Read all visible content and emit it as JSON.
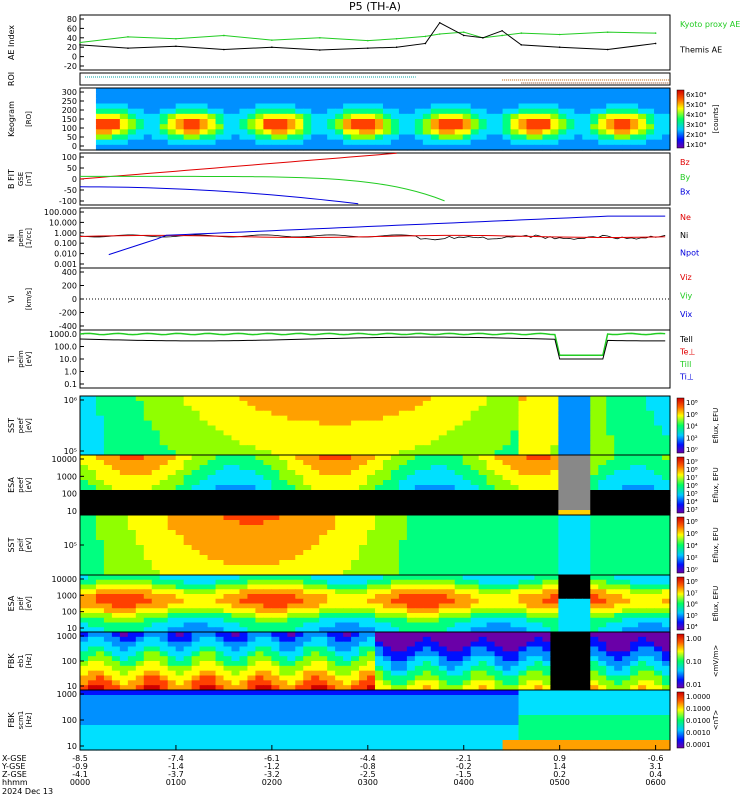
{
  "title": "P5 (TH-A)",
  "date_label": "2024 Dec 13",
  "footer": {
    "row_labels": [
      "X-GSE",
      "Y-GSE",
      "Z-GSE",
      "hhmm"
    ],
    "ticks": [
      {
        "x": "-8.5",
        "y": "-0.9",
        "z": "-4.1",
        "t": "0000"
      },
      {
        "x": "-7.4",
        "y": "-1.4",
        "z": "-3.7",
        "t": "0100"
      },
      {
        "x": "-6.1",
        "y": "-1.2",
        "z": "-3.2",
        "t": "0200"
      },
      {
        "x": "-4.4",
        "y": "-0.8",
        "z": "-2.5",
        "t": "0300"
      },
      {
        "x": "-2.1",
        "y": "-0.2",
        "z": "-1.5",
        "t": "0400"
      },
      {
        "x": "0.9",
        "y": "1.4",
        "z": "0.2",
        "t": "0500"
      },
      {
        "x": "-0.6",
        "y": "3.1",
        "z": "0.4",
        "t": "0600"
      }
    ]
  },
  "colors": {
    "red": "#e00000",
    "green": "#22cc22",
    "blue": "#0000dd",
    "black": "#000000"
  },
  "chart_data": [
    {
      "id": "ae",
      "type": "line",
      "ylabel": "AE Index",
      "yticks": [
        "80",
        "60",
        "40",
        "20",
        "0",
        "-20"
      ],
      "ylim": [
        -20,
        80
      ],
      "legend": [
        {
          "name": "Kyoto proxy AE",
          "color": "green"
        },
        {
          "name": "Themis AE",
          "color": "black"
        }
      ],
      "x_hours": [
        0,
        0.5,
        1,
        1.5,
        2,
        2.5,
        3,
        3.3,
        3.6,
        3.75,
        4,
        4.2,
        4.4,
        4.6,
        5,
        5.5,
        6
      ],
      "series": [
        {
          "name": "Kyoto proxy AE",
          "values": [
            30,
            42,
            38,
            45,
            35,
            40,
            34,
            38,
            43,
            48,
            52,
            40,
            45,
            50,
            47,
            52,
            50
          ]
        },
        {
          "name": "Themis AE",
          "values": [
            25,
            18,
            22,
            15,
            20,
            14,
            18,
            20,
            28,
            72,
            45,
            40,
            55,
            25,
            20,
            15,
            28
          ]
        }
      ]
    },
    {
      "id": "roi",
      "type": "other",
      "ylabel": "ROI"
    },
    {
      "id": "keogram",
      "type": "heatmap",
      "ylabel": "Keogram",
      "yunit": "[RO]",
      "yticks": [
        "300",
        "250",
        "200",
        "150",
        "100",
        "50",
        "0"
      ],
      "colorbar": {
        "ticks": [
          "6x10⁴",
          "5x10⁴",
          "4x10⁴",
          "3x10⁴",
          "2x10⁴",
          "1x10⁴"
        ],
        "label": "[counts]"
      }
    },
    {
      "id": "bfield",
      "type": "line",
      "ylabel": "B FIT",
      "yunit": "[nT]",
      "ysub": "GSE",
      "yticks": [
        "100",
        "50",
        "0",
        "-50",
        "-100"
      ],
      "ylim": [
        -100,
        100
      ],
      "legend": [
        {
          "name": "Bz",
          "color": "red"
        },
        {
          "name": "By",
          "color": "green"
        },
        {
          "name": "Bx",
          "color": "blue"
        }
      ]
    },
    {
      "id": "density",
      "type": "line",
      "ylabel": "Ni",
      "ysub": "peim",
      "yunit": "[1/cc]",
      "yticks": [
        "100.000",
        "10.000",
        "1.000",
        "0.100",
        "0.010",
        "0.001"
      ],
      "yscale": "log",
      "legend": [
        {
          "name": "Ne",
          "color": "red"
        },
        {
          "name": "Ni",
          "color": "black"
        },
        {
          "name": "Npot",
          "color": "blue"
        }
      ]
    },
    {
      "id": "velocity",
      "type": "line",
      "ylabel": "Vi",
      "yunit": "[km/s]",
      "yticks": [
        "400",
        "200",
        "0",
        "-200",
        "-400"
      ],
      "ylim": [
        -400,
        400
      ],
      "legend": [
        {
          "name": "Viz",
          "color": "red"
        },
        {
          "name": "Viy",
          "color": "green"
        },
        {
          "name": "Vix",
          "color": "blue"
        }
      ]
    },
    {
      "id": "temp",
      "type": "line",
      "ylabel": "Ti",
      "ysub": "peim",
      "yunit": "[eV]",
      "yticks": [
        "1000.0",
        "100.0",
        "10.0",
        "1.0",
        "0.1"
      ],
      "yscale": "log",
      "legend": [
        {
          "name": "Tell",
          "color": "black"
        },
        {
          "name": "Te⊥",
          "color": "red"
        },
        {
          "name": "Till",
          "color": "green"
        },
        {
          "name": "Ti⊥",
          "color": "blue"
        }
      ]
    },
    {
      "id": "sst_e",
      "type": "heatmap",
      "ylabel": "SST",
      "ysub": "peef",
      "yunit": "[eV]",
      "yticks": [
        "10⁶",
        "10⁵"
      ],
      "colorbar": {
        "ticks": [
          "10⁸",
          "10⁶",
          "10⁴",
          "10²",
          "10⁰"
        ],
        "label": "Eflux, EFU"
      }
    },
    {
      "id": "esa_e",
      "type": "heatmap",
      "ylabel": "ESA",
      "ysub": "peef",
      "yunit": "[eV]",
      "yticks": [
        "10000",
        "1000",
        "100",
        "10"
      ],
      "colorbar": {
        "ticks": [
          "10⁹",
          "10⁸",
          "10⁷",
          "10⁶",
          "10⁵",
          "10⁴",
          "10³"
        ],
        "label": "Eflux, EFU"
      }
    },
    {
      "id": "sst_i",
      "type": "heatmap",
      "ylabel": "SST",
      "ysub": "peif",
      "yunit": "[eV]",
      "yticks": [
        "10⁵"
      ],
      "colorbar": {
        "ticks": [
          "10⁸",
          "10⁶",
          "10⁴",
          "10²",
          "10⁰"
        ],
        "label": "Eflux, EFU"
      }
    },
    {
      "id": "esa_i",
      "type": "heatmap",
      "ylabel": "ESA",
      "ysub": "peif",
      "yunit": "[eV]",
      "yticks": [
        "10000",
        "1000",
        "100",
        "10"
      ],
      "colorbar": {
        "ticks": [
          "10⁸",
          "10⁷",
          "10⁶",
          "10⁵",
          "10⁴"
        ],
        "label": "Eflux, EFU"
      }
    },
    {
      "id": "fbk_e",
      "type": "heatmap",
      "ylabel": "FBK",
      "ysub": "eb1",
      "yunit": "[Hz]",
      "yticks": [
        "1000",
        "100",
        "10"
      ],
      "colorbar": {
        "ticks": [
          "1.00",
          "0.10",
          "0.01"
        ],
        "label": "<mV/m>"
      }
    },
    {
      "id": "fbk_b",
      "type": "heatmap",
      "ylabel": "FBK",
      "ysub": "scm1",
      "yunit": "[Hz]",
      "yticks": [
        "1000",
        "100",
        "10"
      ],
      "colorbar": {
        "ticks": [
          "1.0000",
          "0.1000",
          "0.0100",
          "0.0010",
          "0.0001"
        ],
        "label": "<nT>"
      }
    }
  ]
}
